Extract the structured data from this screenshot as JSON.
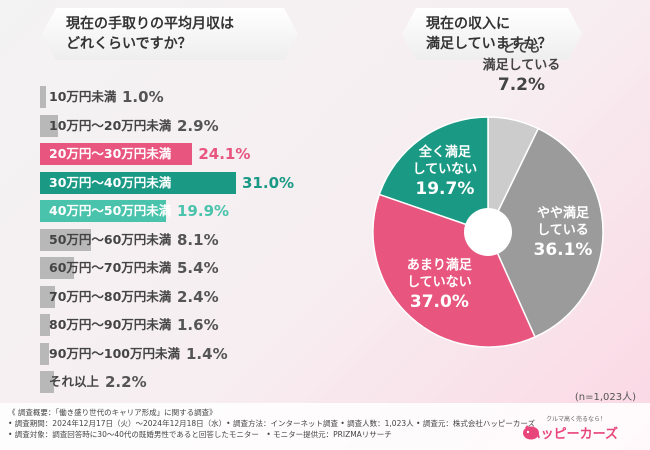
{
  "questions": {
    "q1": [
      "現在の手取りの平均月収は",
      "どれくらいですか？"
    ],
    "q2": [
      "現在の収入に",
      "満足していますか？"
    ]
  },
  "chart_data": [
    {
      "type": "bar",
      "orientation": "horizontal",
      "title": "現在の手取りの平均月収はどれくらいですか？",
      "categories": [
        "10万円未満",
        "10万円～20万円未満",
        "20万円～30万円未満",
        "30万円～40万円未満",
        "40万円～50万円未満",
        "50万円～60万円未満",
        "60万円～70万円未満",
        "70万円～80万円未満",
        "80万円～90万円未満",
        "90万円～100万円未満",
        "それ以上"
      ],
      "values": [
        1.0,
        2.9,
        24.1,
        31.0,
        19.9,
        8.1,
        5.4,
        2.4,
        1.6,
        1.4,
        2.2
      ],
      "value_labels": [
        "1.0%",
        "2.9%",
        "24.1%",
        "31.0%",
        "19.9%",
        "8.1%",
        "5.4%",
        "2.4%",
        "1.6%",
        "1.4%",
        "2.2%"
      ],
      "unit": "%",
      "colors": [
        "#b8b8b8",
        "#b8b8b8",
        "#e8557e",
        "#1a9985",
        "#4ac3ac",
        "#b8b8b8",
        "#b8b8b8",
        "#b8b8b8",
        "#b8b8b8",
        "#b8b8b8",
        "#b8b8b8"
      ],
      "value_colors": [
        "#555555",
        "#555555",
        "#e8557e",
        "#1a9985",
        "#4ac3ac",
        "#555555",
        "#555555",
        "#555555",
        "#555555",
        "#555555",
        "#555555"
      ],
      "xlim": [
        0,
        31.0
      ]
    },
    {
      "type": "pie",
      "title": "現在の収入に満足していますか？",
      "categories": [
        "とても満足している",
        "やや満足している",
        "あまり満足していない",
        "全く満足していない"
      ],
      "values": [
        7.2,
        36.1,
        37.0,
        19.7
      ],
      "value_labels": [
        "7.2%",
        "36.1%",
        "37.0%",
        "19.7%"
      ],
      "colors": [
        "#cccccc",
        "#9b9b9b",
        "#e8557e",
        "#1a9985"
      ],
      "label_colors": [
        "#444444",
        "#ffffff",
        "#ffffff",
        "#ffffff"
      ],
      "donut_hole": true,
      "n_label": "(n=1,023人)"
    }
  ],
  "pie_labels": [
    {
      "lines": [
        "とても",
        "満足している"
      ],
      "value": "7.2%"
    },
    {
      "lines": [
        "やや満足",
        "している"
      ],
      "value": "36.1%"
    },
    {
      "lines": [
        "あまり満足",
        "していない"
      ],
      "value": "37.0%"
    },
    {
      "lines": [
        "全く満足",
        "していない"
      ],
      "value": "19.7%"
    }
  ],
  "footnotes": [
    "《 調査概要：「働き盛り世代のキャリア形成」に関する調査》",
    "• 調査期間：2024年12月17日（火）～2024年12月18日（水）• 調査方法：インターネット調査 • 調査人数：1,023人 • 調査元：株式会社ハッピーカーズ",
    "• 調査対象：調査回答時に30～40代の既婚男性であると回答したモニター　• モニター提供元：PRIZMAリサーチ"
  ],
  "logo": {
    "tagline": "クルマ高く売るなら！",
    "name": "ハッピーカーズ"
  }
}
